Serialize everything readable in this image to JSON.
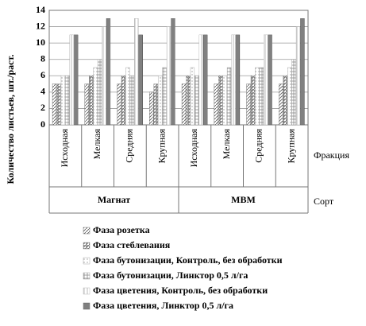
{
  "chart_data": {
    "type": "bar",
    "y_label": "Количество листьев, шт./раст.",
    "x_label": "Фракция",
    "group_label": "Сорт",
    "categories": [
      "Исходная",
      "Мелкая",
      "Средняя",
      "Крупная",
      "Исходная",
      "Мелкая",
      "Средняя",
      "Крупная"
    ],
    "groups": [
      "Магнат",
      "МВМ"
    ],
    "series": [
      {
        "name": "Фаза розетка",
        "color": "#555555",
        "hatch": "diagonal",
        "values": [
          5,
          5,
          5,
          4,
          5,
          5,
          5,
          5
        ]
      },
      {
        "name": "Фаза стеблевания",
        "color": "#777777",
        "hatch": "dense",
        "values": [
          5,
          6,
          6,
          5,
          6,
          6,
          6,
          6
        ]
      },
      {
        "name": "Фаза бутонизации, Контроль, без обработки",
        "color": "#999999",
        "hatch": "dots",
        "values": [
          6,
          7,
          7,
          6,
          7,
          6,
          7,
          7
        ]
      },
      {
        "name": "Фаза бутонизации, Линктор 0,5 л/га",
        "color": "#888888",
        "hatch": "cross",
        "values": [
          6,
          8,
          6,
          7,
          6,
          7,
          7,
          8
        ]
      },
      {
        "name": "Фаза цветения, Контроль, без обработки",
        "color": "#aaaaaa",
        "hatch": "vertical",
        "values": [
          11,
          12,
          13,
          12,
          11,
          11,
          11,
          12
        ]
      },
      {
        "name": "Фаза цветения, Линктор 0,5 л/га",
        "color": "#555555",
        "hatch": "solidv",
        "values": [
          11,
          13,
          11,
          13,
          11,
          11,
          11,
          13
        ]
      }
    ],
    "ylim": [
      0,
      14
    ],
    "yticks": [
      0,
      2,
      4,
      6,
      8,
      10,
      12,
      14
    ],
    "grid": true
  }
}
